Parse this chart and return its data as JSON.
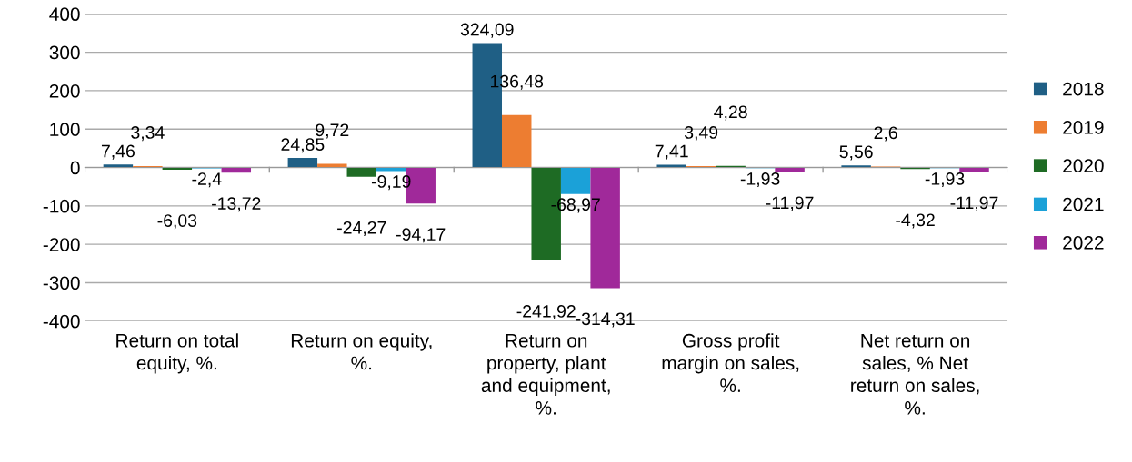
{
  "chart_data": {
    "type": "bar",
    "categories": [
      "Return on total\nequity, %.",
      "Return on equity,\n%.",
      "Return on\nproperty, plant\nand equipment,\n%.",
      "Gross profit\nmargin on sales,\n%.",
      "Net return on\nsales, % Net\nreturn on sales,\n%."
    ],
    "series": [
      {
        "name": "2018",
        "color": "#1f5f85",
        "values": [
          7.46,
          24.85,
          324.09,
          7.41,
          5.56
        ],
        "value_labels": [
          "7,46",
          "24,85",
          "324,09",
          "7,41",
          "5,56"
        ]
      },
      {
        "name": "2019",
        "color": "#ed7d31",
        "values": [
          3.34,
          9.72,
          136.48,
          3.49,
          2.6
        ],
        "value_labels": [
          "3,34",
          "9,72",
          "136,48",
          "3,49",
          "2,6"
        ]
      },
      {
        "name": "2020",
        "color": "#1e6b24",
        "values": [
          -6.03,
          -24.27,
          -241.92,
          4.28,
          -4.32
        ],
        "value_labels": [
          "-6,03",
          "-24,27",
          "-241,92",
          "4,28",
          "-4,32"
        ]
      },
      {
        "name": "2021",
        "color": "#1ba1d8",
        "values": [
          -2.4,
          -9.19,
          -68.97,
          -1.93,
          -1.93
        ],
        "value_labels": [
          "-2,4",
          "-9,19",
          "-68,97",
          "-1,93",
          "-1,93"
        ]
      },
      {
        "name": "2022",
        "color": "#a0299a",
        "values": [
          -13.72,
          -94.17,
          -314.31,
          -11.97,
          -11.97
        ],
        "value_labels": [
          "-13,72",
          "-94,17",
          "-314,31",
          "-11,97",
          "-11,97"
        ]
      }
    ],
    "ylim": [
      -400,
      400
    ],
    "yticks": [
      -400,
      -300,
      -200,
      -100,
      0,
      100,
      200,
      300,
      400
    ],
    "grid": "y",
    "legend": "right"
  }
}
